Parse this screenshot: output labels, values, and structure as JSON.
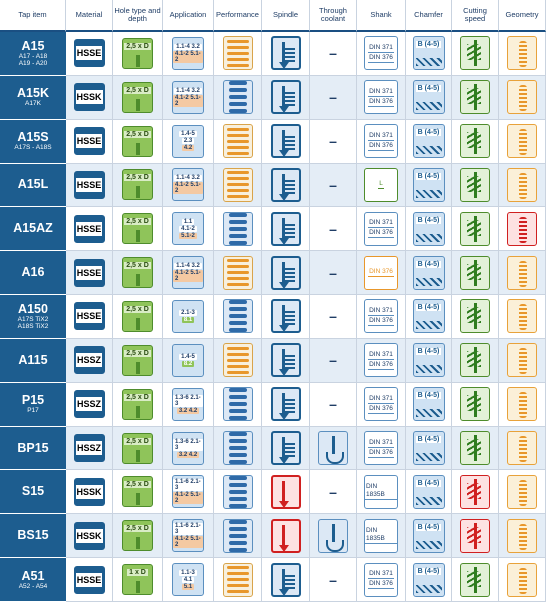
{
  "headers": [
    "Tap item",
    "Material",
    "Hole type and depth",
    "Application",
    "Performance",
    "Spindle",
    "Through coolant",
    "Shank",
    "Chamfer",
    "Cutting speed",
    "Geometry"
  ],
  "icons": {
    "material": "material-badge-icon",
    "hole": "hole-depth-icon",
    "application": "application-icon",
    "performance": "performance-icon",
    "spindle": "spindle-icon",
    "coolant": "through-coolant-icon",
    "shank": "shank-icon",
    "chamfer": "chamfer-icon",
    "speed": "cutting-speed-icon",
    "geometry": "geometry-icon"
  },
  "colors": {
    "primary": "#1d5d8f",
    "green": "#8fc45a",
    "orange": "#e8972b",
    "red": "#d02020"
  },
  "rows": [
    {
      "name": "A15",
      "sub": [
        "A17 - A18",
        "A19 - A20"
      ],
      "material": "HSSE",
      "hole": "2,5 x D",
      "app": [
        "1.1-4 3.2",
        "4.1-2 5.1-2"
      ],
      "perf": "orange",
      "spindle": "blue",
      "coolant": "–",
      "shank": [
        "DIN 371",
        "DIN 376"
      ],
      "chamfer": "B (4-5)",
      "speed": "green",
      "geometry": "orange"
    },
    {
      "name": "A15K",
      "sub": [
        "A17K"
      ],
      "material": "HSSK",
      "hole": "2,5 x D",
      "app": [
        "1.1-4 3.2",
        "4.1-2 5.1-2"
      ],
      "perf": "blue",
      "spindle": "blue",
      "coolant": "–",
      "shank": [
        "DIN 371",
        "DIN 376"
      ],
      "chamfer": "B (4-5)",
      "speed": "green",
      "geometry": "orange"
    },
    {
      "name": "A15S",
      "sub": [
        "A17S - A18S"
      ],
      "material": "HSSE",
      "hole": "2,5 x D",
      "app": [
        "1.4-5",
        "2.3",
        "4.2"
      ],
      "perf": "orange",
      "spindle": "blue",
      "coolant": "–",
      "shank": [
        "DIN 371",
        "DIN 376"
      ],
      "chamfer": "B (4-5)",
      "speed": "green",
      "geometry": "orange"
    },
    {
      "name": "A15L",
      "sub": [],
      "material": "HSSE",
      "hole": "2,5 x D",
      "app": [
        "1.1-4 3.2",
        "4.1-2 5.1-2"
      ],
      "perf": "orange",
      "spindle": "blue",
      "coolant": "–",
      "shank": [
        "L"
      ],
      "chamfer": "B (4-5)",
      "speed": "green",
      "geometry": "orange"
    },
    {
      "name": "A15AZ",
      "sub": [],
      "material": "HSSE",
      "hole": "2,5 x D",
      "app": [
        "1.1",
        "4.1-2",
        "5.1-2"
      ],
      "perf": "blue",
      "spindle": "blue",
      "coolant": "–",
      "shank": [
        "DIN 371",
        "DIN 376"
      ],
      "chamfer": "B (4-5)",
      "speed": "green",
      "geometry": "red"
    },
    {
      "name": "A16",
      "sub": [],
      "material": "HSSE",
      "hole": "2,5 x D",
      "app": [
        "1.1-4 3.2",
        "4.1-2 5.1-2"
      ],
      "perf": "orange",
      "spindle": "blue",
      "coolant": "–",
      "shank": [
        "DIN 376"
      ],
      "chamfer": "B (4-5)",
      "speed": "green",
      "geometry": "orange"
    },
    {
      "name": "A150",
      "sub": [
        "A17S TiX2",
        "A18S TiX2"
      ],
      "material": "HSSE",
      "hole": "2,5 x D",
      "app": [
        "2.1-3",
        "8.1"
      ],
      "perf": "blue",
      "spindle": "blue",
      "coolant": "–",
      "shank": [
        "DIN 371",
        "DIN 376"
      ],
      "chamfer": "B (4-5)",
      "speed": "green",
      "geometry": "orange"
    },
    {
      "name": "A115",
      "sub": [],
      "material": "HSSZ",
      "hole": "2,5 x D",
      "app": [
        "1.4-5",
        "8.2"
      ],
      "perf": "orange",
      "spindle": "blue",
      "coolant": "–",
      "shank": [
        "DIN 371",
        "DIN 376"
      ],
      "chamfer": "B (4-5)",
      "speed": "green",
      "geometry": "orange"
    },
    {
      "name": "P15",
      "sub": [
        "P17"
      ],
      "material": "HSSZ",
      "hole": "2,5 x D",
      "app": [
        "1.3-6 2.1-3",
        "3.2 4.2"
      ],
      "perf": "blue",
      "spindle": "blue",
      "coolant": "–",
      "shank": [
        "DIN 371",
        "DIN 376"
      ],
      "chamfer": "B (4-5)",
      "speed": "green",
      "geometry": "orange"
    },
    {
      "name": "BP15",
      "sub": [],
      "material": "HSSZ",
      "hole": "2,5 x D",
      "app": [
        "1.3-6 2.1-3",
        "3.2 4.2"
      ],
      "perf": "blue",
      "spindle": "blue",
      "coolant": "yes",
      "shank": [
        "DIN 371",
        "DIN 376"
      ],
      "chamfer": "B (4-5)",
      "speed": "green",
      "geometry": "orange"
    },
    {
      "name": "S15",
      "sub": [],
      "material": "HSSK",
      "hole": "2,5 x D",
      "app": [
        "1.1-6 2.1-3",
        "4.1-2 5.1-2"
      ],
      "perf": "blue",
      "spindle": "red",
      "coolant": "–",
      "shank": [
        "DIN 1835B"
      ],
      "chamfer": "B (4-5)",
      "speed": "red",
      "geometry": "orange"
    },
    {
      "name": "BS15",
      "sub": [],
      "material": "HSSK",
      "hole": "2,5 x D",
      "app": [
        "1.1-6 2.1-3",
        "4.1-2 5.1-2"
      ],
      "perf": "blue",
      "spindle": "red",
      "coolant": "yes",
      "shank": [
        "DIN 1835B"
      ],
      "chamfer": "B (4-5)",
      "speed": "red",
      "geometry": "orange"
    },
    {
      "name": "A51",
      "sub": [
        "A52 - A54"
      ],
      "material": "HSSE",
      "hole": "1 x D",
      "app": [
        "1.1-3",
        "4.1",
        "5.1"
      ],
      "perf": "orange",
      "spindle": "blue",
      "coolant": "–",
      "shank": [
        "DIN 371",
        "DIN 376"
      ],
      "chamfer": "B (4-5)",
      "speed": "green",
      "geometry": "orange"
    }
  ]
}
